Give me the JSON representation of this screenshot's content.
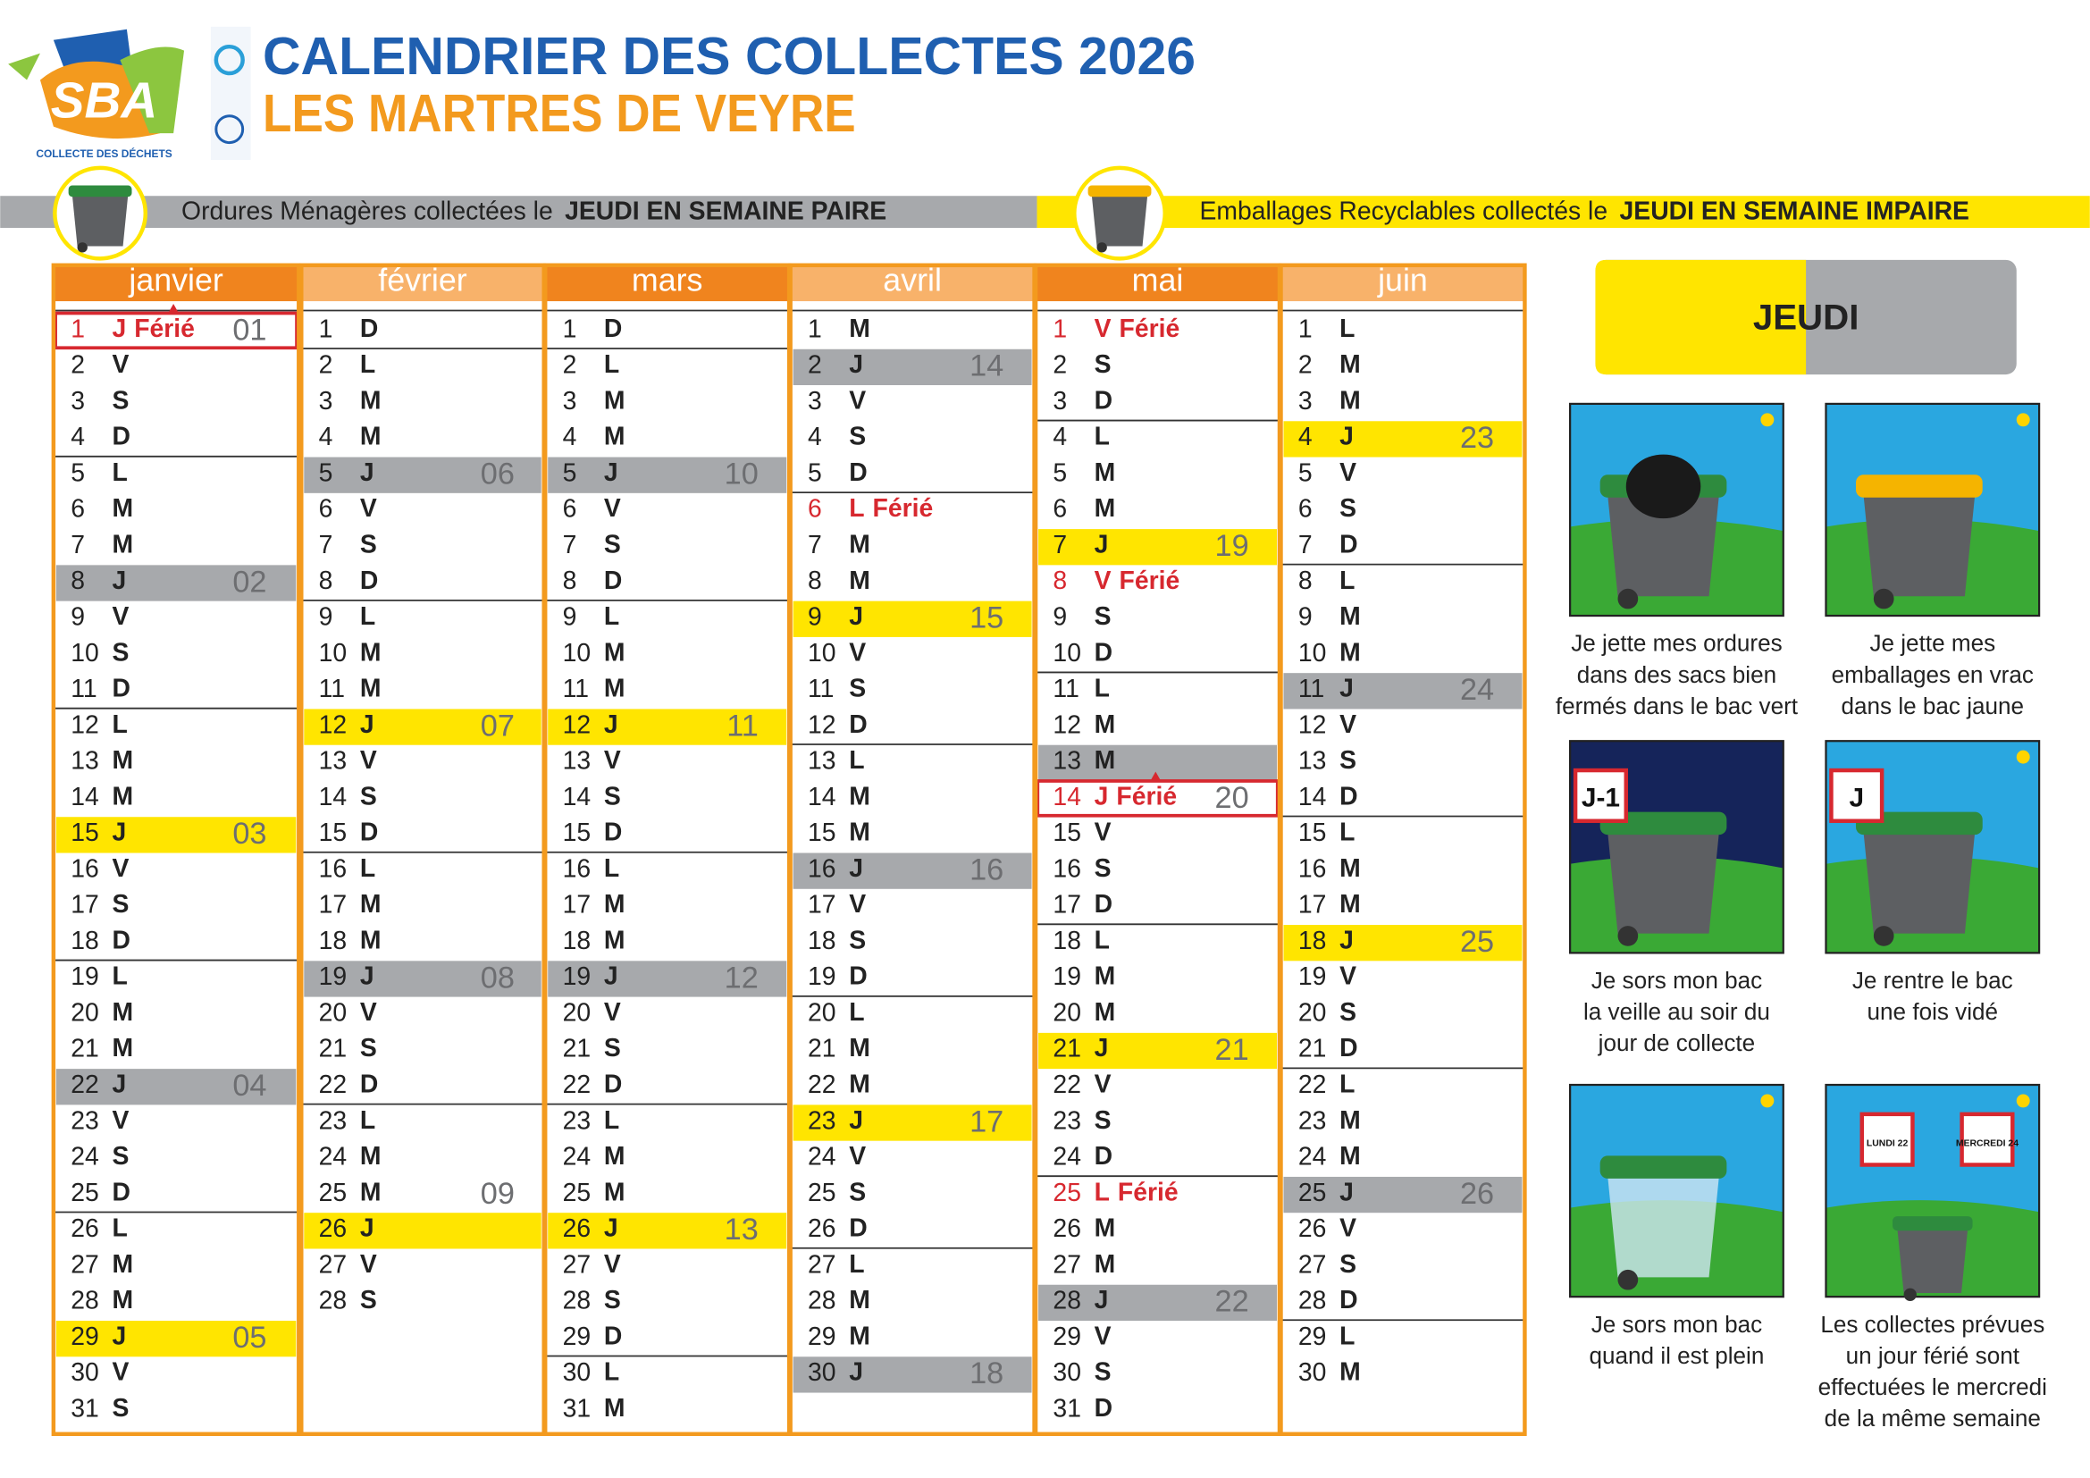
{
  "header": {
    "title": "CALENDRIER DES COLLECTES 2026",
    "subtitle": "LES MARTRES DE VEYRE",
    "logo": "SBA",
    "logo_caption": "COLLECTE DES DÉCHETS"
  },
  "colors": {
    "gray": "#a7a9ac",
    "yellow": "#ffe500"
  },
  "legend": [
    {
      "text": "Ordures Ménagères collectées le",
      "day": "JEUDI EN SEMAINE PAIRE",
      "color": "gray"
    },
    {
      "text": "Emballages Recyclables collectés le",
      "day": "JEUDI EN SEMAINE IMPAIRE",
      "color": "yellow"
    }
  ],
  "months": [
    {
      "name": "janvier",
      "days": [
        {
          "n": 1,
          "d": "J",
          "holiday": "Férié",
          "week": "01"
        },
        [
          2,
          "V"
        ],
        [
          3,
          "S"
        ],
        [
          4,
          "D"
        ],
        [
          5,
          "L"
        ],
        [
          6,
          "M"
        ],
        [
          7,
          "M"
        ],
        {
          "n": 8,
          "d": "J",
          "week": "02",
          "bin": "gray"
        },
        [
          9,
          "V"
        ],
        [
          10,
          "S"
        ],
        [
          11,
          "D"
        ],
        [
          12,
          "L"
        ],
        [
          13,
          "M"
        ],
        [
          14,
          "M"
        ],
        {
          "n": 15,
          "d": "J",
          "week": "03",
          "bin": "yellow"
        },
        [
          16,
          "V"
        ],
        [
          17,
          "S"
        ],
        [
          18,
          "D"
        ],
        [
          19,
          "L"
        ],
        [
          20,
          "M"
        ],
        [
          21,
          "M"
        ],
        {
          "n": 22,
          "d": "J",
          "week": "04",
          "bin": "gray"
        },
        [
          23,
          "V"
        ],
        [
          24,
          "S"
        ],
        [
          25,
          "D"
        ],
        [
          26,
          "L"
        ],
        [
          27,
          "M"
        ],
        [
          28,
          "M"
        ],
        {
          "n": 29,
          "d": "J",
          "week": "05",
          "bin": "yellow"
        },
        [
          30,
          "V"
        ],
        [
          31,
          "S"
        ]
      ]
    },
    {
      "name": "février",
      "days": [
        [
          1,
          "D"
        ],
        [
          2,
          "L"
        ],
        [
          3,
          "M"
        ],
        [
          4,
          "M"
        ],
        {
          "n": 5,
          "d": "J",
          "week": "06",
          "bin": "gray"
        },
        [
          6,
          "V"
        ],
        [
          7,
          "S"
        ],
        [
          8,
          "D"
        ],
        [
          9,
          "L"
        ],
        [
          10,
          "M"
        ],
        [
          11,
          "M"
        ],
        {
          "n": 12,
          "d": "J",
          "week": "07",
          "bin": "yellow"
        },
        [
          13,
          "V"
        ],
        [
          14,
          "S"
        ],
        [
          15,
          "D"
        ],
        [
          16,
          "L"
        ],
        [
          17,
          "M"
        ],
        [
          18,
          "M"
        ],
        {
          "n": 19,
          "d": "J",
          "week": "08",
          "bin": "gray"
        },
        [
          20,
          "V"
        ],
        [
          21,
          "S"
        ],
        [
          22,
          "D"
        ],
        [
          23,
          "L"
        ],
        [
          24,
          "M"
        ],
        {
          "n": 25,
          "d": "M",
          "week": "09"
        },
        {
          "n": 26,
          "d": "J",
          "bin": "yellow"
        },
        [
          27,
          "V"
        ],
        [
          28,
          "S"
        ]
      ]
    },
    {
      "name": "mars",
      "days": [
        [
          1,
          "D"
        ],
        [
          2,
          "L"
        ],
        [
          3,
          "M"
        ],
        [
          4,
          "M"
        ],
        {
          "n": 5,
          "d": "J",
          "week": "10",
          "bin": "gray"
        },
        [
          6,
          "V"
        ],
        [
          7,
          "S"
        ],
        [
          8,
          "D"
        ],
        [
          9,
          "L"
        ],
        [
          10,
          "M"
        ],
        [
          11,
          "M"
        ],
        {
          "n": 12,
          "d": "J",
          "week": "11",
          "bin": "yellow"
        },
        [
          13,
          "V"
        ],
        [
          14,
          "S"
        ],
        [
          15,
          "D"
        ],
        [
          16,
          "L"
        ],
        [
          17,
          "M"
        ],
        [
          18,
          "M"
        ],
        {
          "n": 19,
          "d": "J",
          "week": "12",
          "bin": "gray"
        },
        [
          20,
          "V"
        ],
        [
          21,
          "S"
        ],
        [
          22,
          "D"
        ],
        [
          23,
          "L"
        ],
        [
          24,
          "M"
        ],
        [
          25,
          "M"
        ],
        {
          "n": 26,
          "d": "J",
          "week": "13",
          "bin": "yellow"
        },
        [
          27,
          "V"
        ],
        [
          28,
          "S"
        ],
        [
          29,
          "D"
        ],
        [
          30,
          "L"
        ],
        [
          31,
          "M"
        ]
      ]
    },
    {
      "name": "avril",
      "days": [
        [
          1,
          "M"
        ],
        {
          "n": 2,
          "d": "J",
          "week": "14",
          "bin": "gray"
        },
        [
          3,
          "V"
        ],
        [
          4,
          "S"
        ],
        [
          5,
          "D"
        ],
        {
          "n": 6,
          "d": "L",
          "holiday": "Férié"
        },
        [
          7,
          "M"
        ],
        [
          8,
          "M"
        ],
        {
          "n": 9,
          "d": "J",
          "week": "15",
          "bin": "yellow"
        },
        [
          10,
          "V"
        ],
        [
          11,
          "S"
        ],
        [
          12,
          "D"
        ],
        [
          13,
          "L"
        ],
        [
          14,
          "M"
        ],
        [
          15,
          "M"
        ],
        {
          "n": 16,
          "d": "J",
          "week": "16",
          "bin": "gray"
        },
        [
          17,
          "V"
        ],
        [
          18,
          "S"
        ],
        [
          19,
          "D"
        ],
        [
          20,
          "L"
        ],
        [
          21,
          "M"
        ],
        [
          22,
          "M"
        ],
        {
          "n": 23,
          "d": "J",
          "week": "17",
          "bin": "yellow"
        },
        [
          24,
          "V"
        ],
        [
          25,
          "S"
        ],
        [
          26,
          "D"
        ],
        [
          27,
          "L"
        ],
        [
          28,
          "M"
        ],
        [
          29,
          "M"
        ],
        {
          "n": 30,
          "d": "J",
          "week": "18",
          "bin": "gray"
        }
      ]
    },
    {
      "name": "mai",
      "days": [
        {
          "n": 1,
          "d": "V",
          "holiday": "Férié"
        },
        [
          2,
          "S"
        ],
        [
          3,
          "D"
        ],
        [
          4,
          "L"
        ],
        [
          5,
          "M"
        ],
        [
          6,
          "M"
        ],
        {
          "n": 7,
          "d": "J",
          "week": "19",
          "bin": "yellow"
        },
        {
          "n": 8,
          "d": "V",
          "holiday": "Férié"
        },
        [
          9,
          "S"
        ],
        [
          10,
          "D"
        ],
        [
          11,
          "L"
        ],
        [
          12,
          "M"
        ],
        {
          "n": 13,
          "d": "M",
          "bin": "gray"
        },
        {
          "n": 14,
          "d": "J",
          "holiday": "Férié",
          "week": "20"
        },
        [
          15,
          "V"
        ],
        [
          16,
          "S"
        ],
        [
          17,
          "D"
        ],
        [
          18,
          "L"
        ],
        [
          19,
          "M"
        ],
        [
          20,
          "M"
        ],
        {
          "n": 21,
          "d": "J",
          "week": "21",
          "bin": "yellow"
        },
        [
          22,
          "V"
        ],
        [
          23,
          "S"
        ],
        [
          24,
          "D"
        ],
        {
          "n": 25,
          "d": "L",
          "holiday": "Férié"
        },
        [
          26,
          "M"
        ],
        [
          27,
          "M"
        ],
        {
          "n": 28,
          "d": "J",
          "week": "22",
          "bin": "gray"
        },
        [
          29,
          "V"
        ],
        [
          30,
          "S"
        ],
        [
          31,
          "D"
        ]
      ]
    },
    {
      "name": "juin",
      "days": [
        [
          1,
          "L"
        ],
        [
          2,
          "M"
        ],
        [
          3,
          "M"
        ],
        {
          "n": 4,
          "d": "J",
          "week": "23",
          "bin": "yellow"
        },
        [
          5,
          "V"
        ],
        [
          6,
          "S"
        ],
        [
          7,
          "D"
        ],
        [
          8,
          "L"
        ],
        [
          9,
          "M"
        ],
        [
          10,
          "M"
        ],
        {
          "n": 11,
          "d": "J",
          "week": "24",
          "bin": "gray"
        },
        [
          12,
          "V"
        ],
        [
          13,
          "S"
        ],
        [
          14,
          "D"
        ],
        [
          15,
          "L"
        ],
        [
          16,
          "M"
        ],
        [
          17,
          "M"
        ],
        {
          "n": 18,
          "d": "J",
          "week": "25",
          "bin": "yellow"
        },
        [
          19,
          "V"
        ],
        [
          20,
          "S"
        ],
        [
          21,
          "D"
        ],
        [
          22,
          "L"
        ],
        [
          23,
          "M"
        ],
        [
          24,
          "M"
        ],
        {
          "n": 25,
          "d": "J",
          "week": "26",
          "bin": "gray"
        },
        [
          26,
          "V"
        ],
        [
          27,
          "S"
        ],
        [
          28,
          "D"
        ],
        [
          29,
          "L"
        ],
        [
          30,
          "M"
        ]
      ]
    }
  ],
  "weekday_box": "JEUDI",
  "tips": [
    {
      "caption": [
        "Je jette mes ordures",
        "dans des sacs bien",
        "fermés dans le bac vert"
      ]
    },
    {
      "caption": [
        "Je jette mes",
        "emballages en vrac",
        "dans le bac jaune"
      ]
    },
    {
      "caption": [
        "Je sors mon bac",
        "la veille au soir du",
        "jour de collecte"
      ],
      "labels": [
        "J-1"
      ]
    },
    {
      "caption": [
        "Je rentre le bac",
        "une fois vidé"
      ],
      "labels": [
        "J"
      ]
    },
    {
      "caption": [
        "Je sors mon bac",
        "quand il est plein"
      ]
    },
    {
      "caption": [
        "Les collectes prévues",
        "un jour férié sont",
        "effectuées le mercredi",
        "de la même semaine"
      ],
      "labels": [
        "LUNDI 22",
        "MERCREDI 24"
      ]
    }
  ]
}
